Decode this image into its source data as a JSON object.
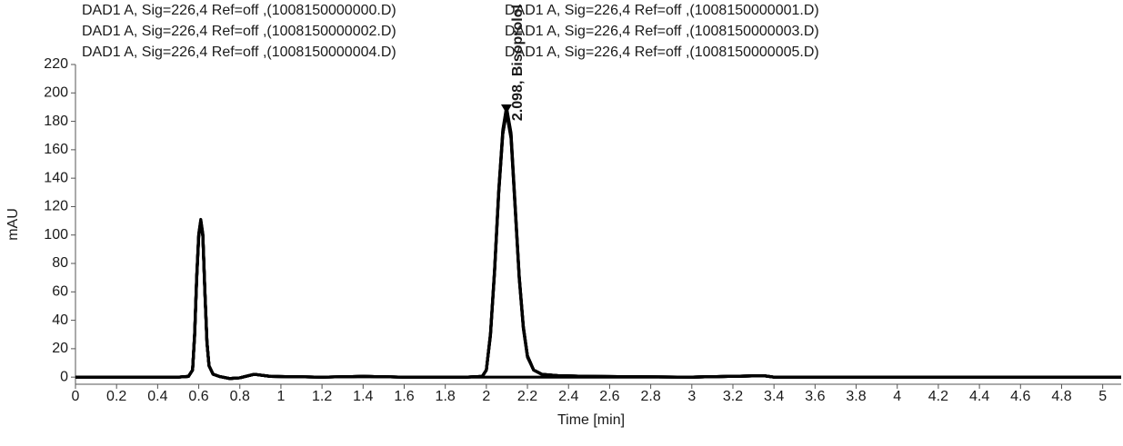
{
  "chart_data": {
    "type": "line",
    "x_label": "Time [min]",
    "y_label": "mAU",
    "xlim": [
      0,
      5.09
    ],
    "ylim": [
      -5,
      220
    ],
    "xticks": [
      0,
      0.2,
      0.4,
      0.6,
      0.8,
      1,
      1.2,
      1.4,
      1.6,
      1.8,
      2,
      2.2,
      2.4,
      2.6,
      2.8,
      3,
      3.2,
      3.4,
      3.6,
      3.8,
      4,
      4.2,
      4.4,
      4.6,
      4.8,
      5
    ],
    "yticks": [
      0,
      20,
      40,
      60,
      80,
      100,
      120,
      140,
      160,
      180,
      200,
      220
    ],
    "x": [
      0,
      0.5,
      0.55,
      0.57,
      0.58,
      0.59,
      0.6,
      0.61,
      0.62,
      0.63,
      0.64,
      0.65,
      0.67,
      0.7,
      0.75,
      0.8,
      0.87,
      0.95,
      1.2,
      1.4,
      1.6,
      1.9,
      1.98,
      2.0,
      2.02,
      2.04,
      2.06,
      2.08,
      2.098,
      2.12,
      2.14,
      2.16,
      2.18,
      2.2,
      2.23,
      2.27,
      2.35,
      2.5,
      3.0,
      3.35,
      3.4,
      4.0,
      5.09
    ],
    "series": [
      {
        "name": "DAD1 A, Sig=226,4 Ref=off ,(1008150000000.D)",
        "color": "#000000",
        "values": [
          0,
          0,
          0.5,
          5,
          29,
          69,
          99,
          109,
          99,
          59,
          24,
          8,
          2,
          0.5,
          -1,
          -0.5,
          2,
          0.5,
          0,
          0.5,
          0,
          0,
          0,
          0,
          0,
          0,
          0,
          0,
          0,
          0,
          0,
          0,
          0,
          0,
          0,
          0,
          0,
          0,
          0,
          1,
          0,
          0,
          0
        ]
      },
      {
        "name": "DAD1 A, Sig=226,4 Ref=off ,(1008150000001.D)",
        "color": "#000000",
        "values": [
          0,
          0,
          0.5,
          5,
          30,
          70,
          100,
          110,
          100,
          60,
          25,
          8,
          2,
          0.5,
          -1,
          -0.5,
          2,
          0.5,
          0,
          0.5,
          0,
          0,
          0.5,
          5,
          30,
          75,
          130,
          172,
          188,
          170,
          120,
          70,
          35,
          15,
          5,
          2,
          1,
          0.5,
          0,
          1,
          0,
          0,
          0
        ]
      },
      {
        "name": "DAD1 A, Sig=226,4 Ref=off ,(1008150000002.D)",
        "color": "#000000",
        "values": [
          0,
          0,
          0.5,
          5,
          31,
          71,
          101,
          111,
          101,
          61,
          25,
          8,
          2,
          0.5,
          -1,
          -0.5,
          2,
          0.5,
          0,
          0.5,
          0,
          0,
          0.5,
          5,
          31,
          76,
          131,
          173,
          189,
          171,
          121,
          71,
          36,
          15,
          5,
          2,
          1,
          0.5,
          0,
          1,
          0,
          0,
          0
        ]
      },
      {
        "name": "DAD1 A, Sig=226,4 Ref=off ,(1008150000003.D)",
        "color": "#000000",
        "values": [
          0,
          0,
          0.5,
          5,
          29,
          69,
          99,
          109,
          99,
          59,
          24,
          8,
          2,
          0.5,
          -1,
          -0.5,
          2,
          0.5,
          0,
          0.5,
          0,
          0,
          0.5,
          5,
          29,
          74,
          129,
          171,
          187,
          169,
          119,
          69,
          34,
          14,
          5,
          2,
          1,
          0.5,
          0,
          1,
          0,
          0,
          0
        ]
      },
      {
        "name": "DAD1 A, Sig=226,4 Ref=off ,(1008150000004.D)",
        "color": "#000000",
        "values": [
          0,
          0,
          0.5,
          5,
          30,
          70,
          100,
          110,
          100,
          60,
          25,
          8,
          2,
          0.5,
          -1,
          -0.5,
          2,
          0.5,
          0,
          0.5,
          0,
          0,
          0.5,
          5,
          30,
          75,
          131,
          174,
          190,
          172,
          122,
          71,
          35,
          15,
          5,
          2,
          1,
          0.5,
          0,
          1,
          0,
          0,
          0
        ]
      },
      {
        "name": "DAD1 A, Sig=226,4 Ref=off ,(1008150000005.D)",
        "color": "#000000",
        "values": [
          0,
          0,
          0.5,
          5,
          30,
          70,
          100,
          110,
          100,
          60,
          25,
          8,
          2,
          0.5,
          -1,
          -0.5,
          2,
          0.5,
          0,
          0.5,
          0,
          0,
          0.5,
          5,
          30,
          74,
          129,
          171,
          186,
          168,
          119,
          70,
          35,
          15,
          5,
          2,
          1,
          0.5,
          0,
          1,
          0,
          0,
          0
        ]
      }
    ],
    "annotations": [
      {
        "text": "2.098, Bisoprolol",
        "x": 2.098,
        "y": 188
      }
    ]
  }
}
